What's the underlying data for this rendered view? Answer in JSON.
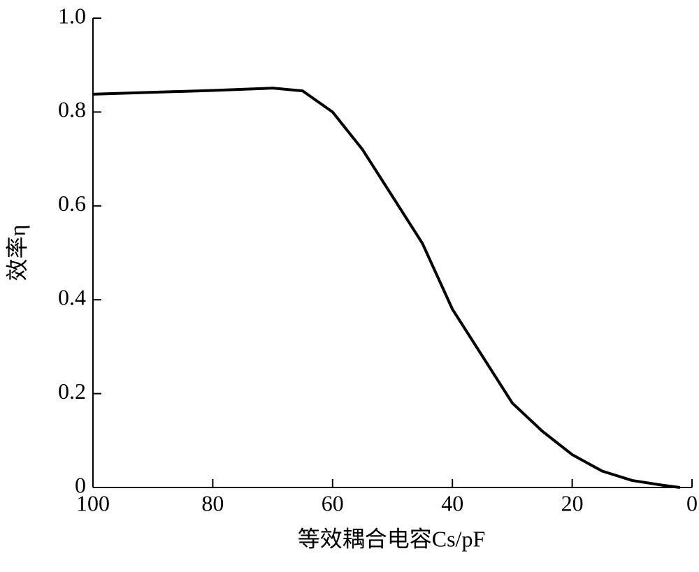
{
  "chart_data": {
    "type": "line",
    "x_label": "等效耦合电容Cs/pF",
    "y_label": "效率η",
    "x": [
      100,
      90,
      80,
      70,
      65,
      60,
      55,
      50,
      45,
      40,
      35,
      30,
      25,
      20,
      15,
      10,
      5,
      2
    ],
    "series": [
      {
        "color": "#000000",
        "values": [
          0.838,
          0.842,
          0.846,
          0.851,
          0.845,
          0.8,
          0.72,
          0.62,
          0.52,
          0.38,
          0.28,
          0.18,
          0.12,
          0.07,
          0.035,
          0.015,
          0.005,
          0
        ]
      }
    ],
    "xlim": [
      100,
      0
    ],
    "ylim": [
      0,
      1
    ],
    "xticks": [
      100,
      80,
      60,
      40,
      20,
      0
    ],
    "yticks": [
      0,
      0.2,
      0.4,
      0.6,
      0.8,
      {
        "value": 1,
        "label": "1.0"
      }
    ]
  }
}
